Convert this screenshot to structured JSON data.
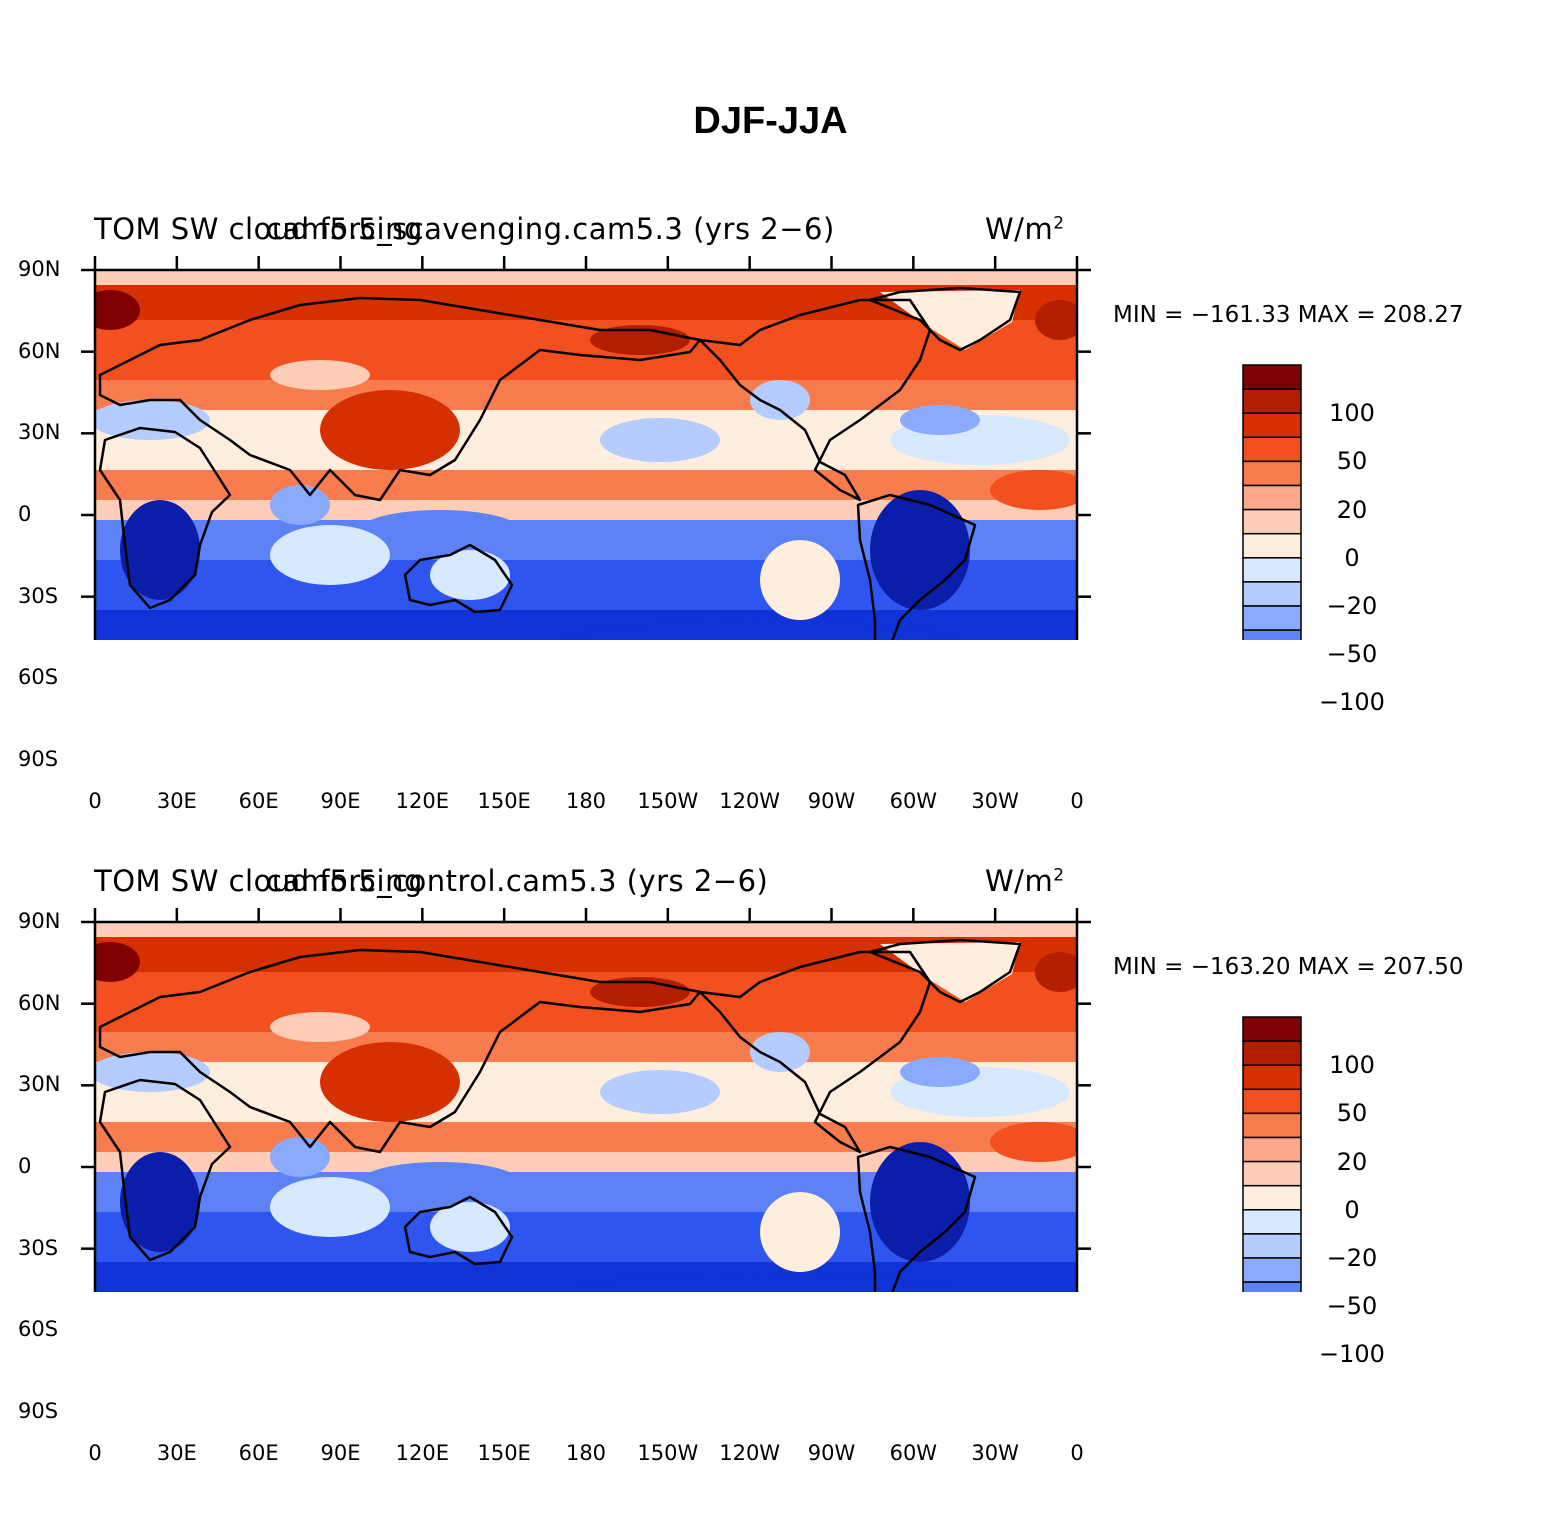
{
  "title": "DJF-JJA",
  "panels": [
    {
      "variable": "TOM SW cloud forcing",
      "case": "cam5.5_scavenging.cam5.3 (yrs 2−6)",
      "unit_base": "W/m",
      "unit_exp": "2",
      "stats": "MIN = −161.33 MAX = 208.27"
    },
    {
      "variable": "TOM SW cloud forcing",
      "case": "cam5.5_control.cam5.3 (yrs 2−6)",
      "unit_base": "W/m",
      "unit_exp": "2",
      "stats": "MIN = −163.20 MAX = 207.50"
    }
  ],
  "lat_ticks": [
    "90N",
    "60N",
    "30N",
    "0",
    "30S",
    "60S",
    "90S"
  ],
  "lon_ticks": [
    "0",
    "30E",
    "60E",
    "90E",
    "120E",
    "150E",
    "180",
    "150W",
    "120W",
    "90W",
    "60W",
    "30W",
    "0"
  ],
  "colorbar_labels": [
    "100",
    "50",
    "20",
    "0",
    "−20",
    "−50",
    "−100"
  ],
  "colorbar_colors": [
    "#7f0000",
    "#b31d00",
    "#d73000",
    "#f2501e",
    "#f87c4e",
    "#fca88a",
    "#fdcdb8",
    "#ffeedd",
    "#d6e9ff",
    "#b4ccff",
    "#8aaaff",
    "#5c82f5",
    "#2f55f0",
    "#0f33d6",
    "#0a1eaa",
    "#000b8a"
  ]
}
